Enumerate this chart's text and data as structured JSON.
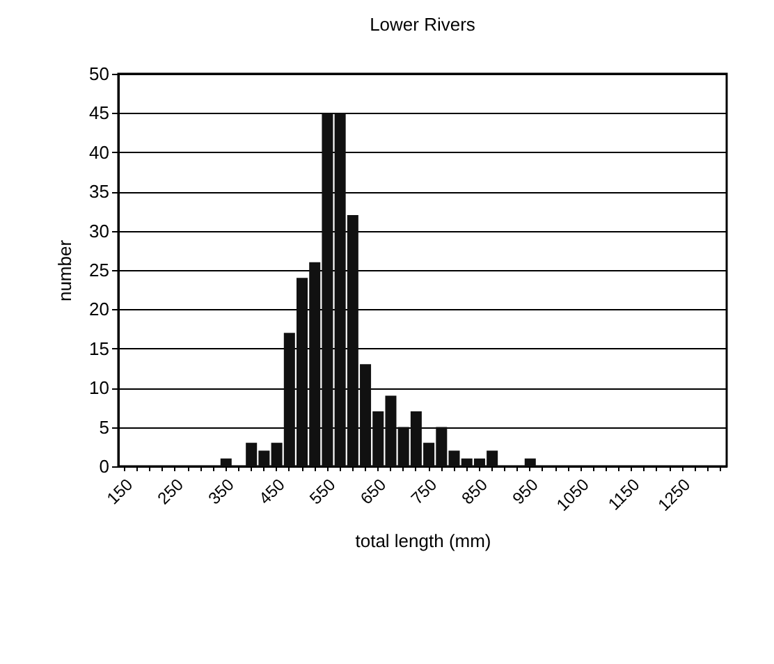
{
  "chart_data": {
    "type": "bar",
    "title": "Lower Rivers",
    "xlabel": "total length (mm)",
    "ylabel": "number",
    "categories": [
      "150",
      null,
      null,
      null,
      "250",
      null,
      null,
      null,
      "350",
      null,
      null,
      null,
      "450",
      null,
      null,
      null,
      "550",
      null,
      null,
      null,
      "650",
      null,
      null,
      null,
      "750",
      null,
      null,
      null,
      "850",
      null,
      null,
      null,
      "950",
      null,
      null,
      null,
      "1050",
      null,
      null,
      null,
      "1150",
      null,
      null,
      null,
      "1250",
      null,
      null,
      null
    ],
    "values": [
      0,
      0,
      0,
      0,
      0,
      0,
      0,
      0,
      1,
      0,
      3,
      2,
      3,
      17,
      24,
      26,
      45,
      45,
      32,
      13,
      7,
      9,
      5,
      7,
      3,
      5,
      2,
      1,
      1,
      2,
      0,
      0,
      1,
      0,
      0,
      0,
      0,
      0,
      0,
      0,
      0,
      0,
      0,
      0,
      0,
      0,
      0,
      0
    ],
    "color": "#111111",
    "ylim": [
      0,
      50
    ],
    "yticks": [
      0,
      5,
      10,
      15,
      20,
      25,
      30,
      35,
      40,
      45,
      50
    ],
    "grid": "y"
  }
}
